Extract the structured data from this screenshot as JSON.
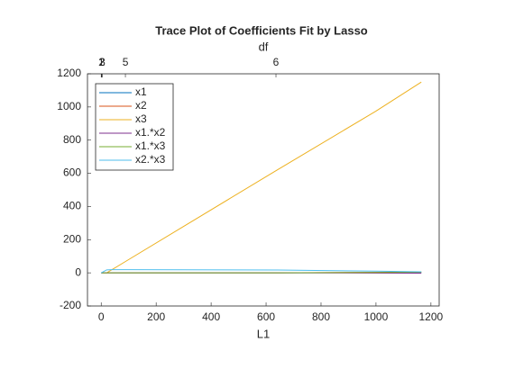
{
  "chart_data": {
    "type": "line",
    "title": "Trace Plot of Coefficients Fit by Lasso",
    "xlabel": "L1",
    "x2label": "df",
    "x": [
      0,
      20,
      40,
      90,
      640,
      1000,
      1165
    ],
    "series": [
      {
        "name": "x1",
        "color": "#0072BD",
        "values": [
          0,
          0,
          0,
          0,
          0,
          1,
          2
        ]
      },
      {
        "name": "x2",
        "color": "#D95319",
        "values": [
          0,
          0,
          0,
          0,
          0,
          3,
          5
        ]
      },
      {
        "name": "x3",
        "color": "#EDB120",
        "values": [
          0,
          0,
          20,
          70,
          620,
          975,
          1150
        ]
      },
      {
        "name": "x1.*x2",
        "color": "#7E2F8E",
        "values": [
          0,
          0,
          0,
          0,
          0,
          -1,
          -2
        ]
      },
      {
        "name": "x1.*x3",
        "color": "#77AC30",
        "values": [
          0,
          0,
          0,
          0,
          0,
          2,
          4
        ]
      },
      {
        "name": "x2.*x3",
        "color": "#4DBEEE",
        "values": [
          0,
          18,
          19,
          19,
          17,
          10,
          6
        ]
      }
    ],
    "xlim": [
      -50,
      1230
    ],
    "ylim": [
      -200,
      1200
    ],
    "xticks": [
      0,
      200,
      400,
      600,
      800,
      1000,
      1200
    ],
    "yticks": [
      -200,
      0,
      200,
      400,
      600,
      800,
      1000,
      1200
    ],
    "x2ticks": [
      {
        "value": 0,
        "label": "1"
      },
      {
        "value": 2,
        "label": "2"
      },
      {
        "value": 4,
        "label": "3"
      },
      {
        "value": 88,
        "label": "5"
      },
      {
        "value": 636,
        "label": "6"
      }
    ],
    "legend": "upper left",
    "grid": false
  }
}
